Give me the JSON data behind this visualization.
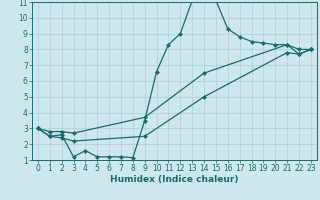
{
  "bg_color": "#cde8ec",
  "grid_color": "#b0ced4",
  "line_color": "#1a6b6b",
  "marker": "D",
  "markersize": 2.0,
  "linewidth": 0.9,
  "xlabel": "Humidex (Indice chaleur)",
  "xlabel_fontsize": 6.5,
  "xlabel_fontweight": "bold",
  "xlim": [
    -0.5,
    23.5
  ],
  "ylim": [
    1,
    11
  ],
  "xticks": [
    0,
    1,
    2,
    3,
    4,
    5,
    6,
    7,
    8,
    9,
    10,
    11,
    12,
    13,
    14,
    15,
    16,
    17,
    18,
    19,
    20,
    21,
    22,
    23
  ],
  "yticks": [
    1,
    2,
    3,
    4,
    5,
    6,
    7,
    8,
    9,
    10,
    11
  ],
  "tick_fontsize": 5.5,
  "line1_x": [
    0,
    1,
    2,
    3,
    4,
    5,
    6,
    7,
    8,
    9,
    10,
    11,
    12,
    13,
    14,
    15,
    16,
    17,
    18,
    19,
    20,
    21,
    22,
    23
  ],
  "line1_y": [
    3.0,
    2.5,
    2.6,
    1.2,
    1.6,
    1.2,
    1.2,
    1.2,
    1.15,
    3.5,
    6.6,
    8.3,
    9.0,
    11.1,
    11.1,
    11.1,
    9.3,
    8.8,
    8.5,
    8.4,
    8.3,
    8.3,
    7.7,
    8.0
  ],
  "line2_x": [
    0,
    1,
    2,
    3,
    9,
    14,
    21,
    22,
    23
  ],
  "line2_y": [
    3.0,
    2.8,
    2.8,
    2.7,
    3.7,
    6.5,
    8.3,
    8.0,
    8.0
  ],
  "line3_x": [
    0,
    1,
    2,
    3,
    9,
    14,
    21,
    22,
    23
  ],
  "line3_y": [
    3.0,
    2.5,
    2.4,
    2.2,
    2.5,
    5.0,
    7.8,
    7.7,
    8.0
  ]
}
